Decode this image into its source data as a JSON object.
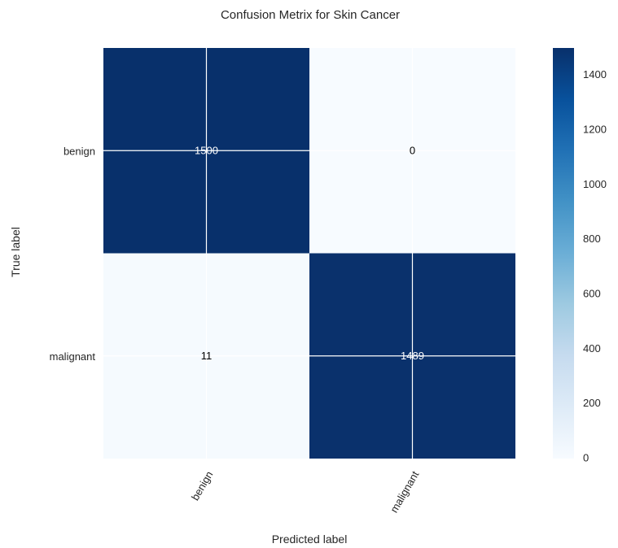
{
  "chart_data": {
    "type": "heatmap",
    "title": "Confusion Metrix for Skin Cancer",
    "xlabel": "Predicted label",
    "ylabel": "True label",
    "x_categories": [
      "benign",
      "malignant"
    ],
    "y_categories": [
      "benign",
      "malignant"
    ],
    "matrix": [
      [
        1500,
        0
      ],
      [
        11,
        1489
      ]
    ],
    "cell_labels": [
      [
        "1500",
        "0"
      ],
      [
        "11",
        "1489"
      ]
    ],
    "colormap": "Blues",
    "colorbar": {
      "ticks": [
        0,
        200,
        400,
        600,
        800,
        1000,
        1200,
        1400
      ],
      "tick_labels": [
        "0",
        "200",
        "400",
        "600",
        "800",
        "1000",
        "1200",
        "1400"
      ],
      "range": [
        0,
        1500
      ]
    },
    "grid": true
  },
  "colors": {
    "low": "#f7fbff",
    "high": "#08306b",
    "dark_text": "#000000",
    "light_text": "#ffffff",
    "grid": "#ffffff"
  }
}
